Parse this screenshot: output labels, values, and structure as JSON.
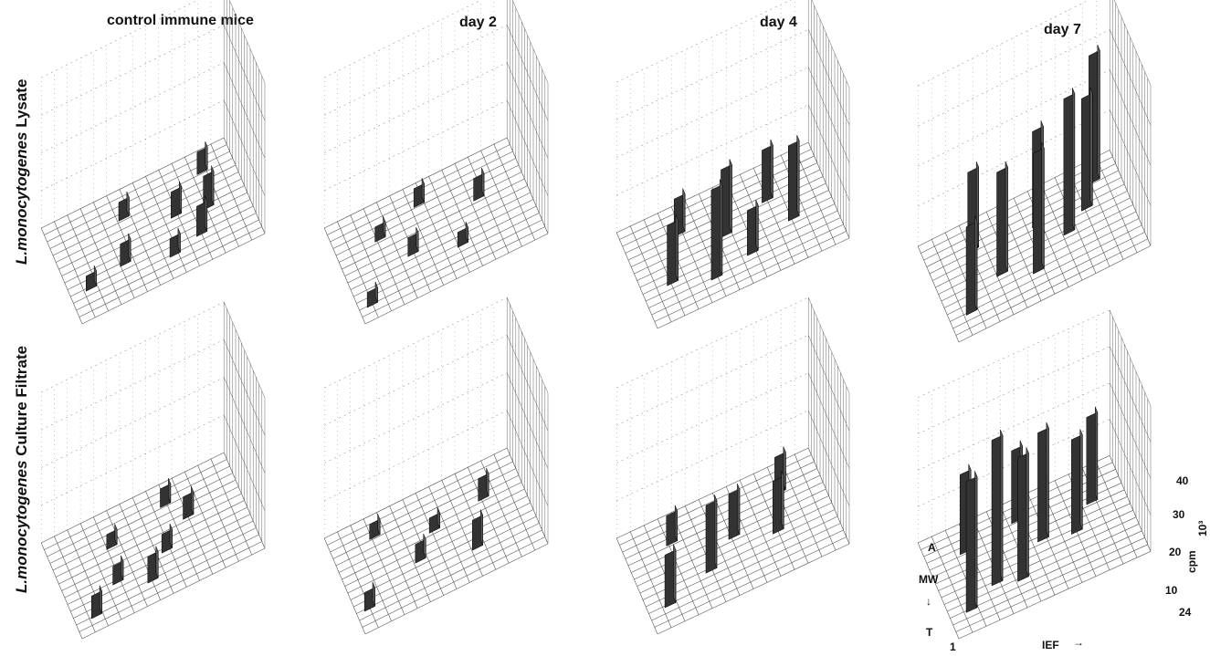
{
  "columns": [
    "control immune mice",
    "day 2",
    "day 4",
    "day 7"
  ],
  "rows": [
    {
      "italic": "L.monocytogenes",
      "rest": " Lysate"
    },
    {
      "italic": "L.monocytogenes",
      "rest": "  Culture Filtrate"
    }
  ],
  "axes": {
    "iefLabel": "IEF",
    "iefArrow": "→",
    "iefStart": "1",
    "iefEnd": "24",
    "mwLabel": "MW",
    "mwTop": "A",
    "mwArrow": "↓",
    "mwBottom": "T",
    "zLabel": "cpm",
    "zExp": "10³",
    "zTicks": [
      "10",
      "20",
      "30",
      "40"
    ]
  },
  "chart_data": [
    {
      "type": "bar3d",
      "row": "Lysate",
      "column": "control immune mice",
      "x_range": [
        1,
        24
      ],
      "z_range": [
        0,
        40
      ],
      "peaks": [
        [
          3,
          4,
          4
        ],
        [
          8,
          5,
          6
        ],
        [
          14,
          3,
          5
        ],
        [
          16,
          8,
          7
        ],
        [
          18,
          4,
          8
        ],
        [
          10,
          11,
          5
        ],
        [
          20,
          7,
          9
        ],
        [
          21,
          12,
          6
        ]
      ]
    },
    {
      "type": "bar3d",
      "row": "Lysate",
      "column": "day 2",
      "x_range": [
        1,
        24
      ],
      "z_range": [
        0,
        40
      ],
      "peaks": [
        [
          2,
          2,
          4
        ],
        [
          9,
          6,
          5
        ],
        [
          15,
          4,
          4
        ],
        [
          19,
          9,
          6
        ],
        [
          12,
          12,
          5
        ],
        [
          6,
          10,
          4
        ]
      ]
    },
    {
      "type": "bar3d",
      "row": "Lysate",
      "column": "day 4",
      "x_range": [
        1,
        24
      ],
      "z_range": [
        0,
        40
      ],
      "peaks": [
        [
          4,
          5,
          16
        ],
        [
          9,
          3,
          24
        ],
        [
          12,
          8,
          18
        ],
        [
          14,
          4,
          12
        ],
        [
          18,
          10,
          14
        ],
        [
          20,
          6,
          20
        ],
        [
          7,
          11,
          10
        ]
      ]
    },
    {
      "type": "bar3d",
      "row": "Lysate",
      "column": "day 7",
      "x_range": [
        1,
        24
      ],
      "z_range": [
        0,
        40
      ],
      "peaks": [
        [
          3,
          3,
          22
        ],
        [
          8,
          6,
          26
        ],
        [
          12,
          4,
          30
        ],
        [
          17,
          7,
          34
        ],
        [
          20,
          9,
          28
        ],
        [
          22,
          12,
          32
        ],
        [
          6,
          11,
          20
        ],
        [
          14,
          10,
          24
        ]
      ]
    },
    {
      "type": "bar3d",
      "row": "Culture Filtrate",
      "column": "control immune mice",
      "x_range": [
        1,
        24
      ],
      "z_range": [
        0,
        40
      ],
      "peaks": [
        [
          3,
          2,
          6
        ],
        [
          7,
          5,
          5
        ],
        [
          11,
          3,
          7
        ],
        [
          14,
          6,
          5
        ],
        [
          18,
          9,
          6
        ],
        [
          8,
          10,
          4
        ],
        [
          16,
          12,
          5
        ]
      ]
    },
    {
      "type": "bar3d",
      "row": "Culture Filtrate",
      "column": "day 2",
      "x_range": [
        1,
        24
      ],
      "z_range": [
        0,
        40
      ],
      "peaks": [
        [
          2,
          3,
          5
        ],
        [
          10,
          6,
          5
        ],
        [
          17,
          4,
          8
        ],
        [
          20,
          10,
          6
        ],
        [
          6,
          12,
          4
        ],
        [
          13,
          9,
          4
        ]
      ]
    },
    {
      "type": "bar3d",
      "row": "Culture Filtrate",
      "column": "day 4",
      "x_range": [
        1,
        24
      ],
      "z_range": [
        0,
        40
      ],
      "peaks": [
        [
          3,
          3,
          14
        ],
        [
          9,
          5,
          18
        ],
        [
          13,
          8,
          12
        ],
        [
          18,
          6,
          14
        ],
        [
          20,
          11,
          10
        ],
        [
          6,
          11,
          8
        ]
      ]
    },
    {
      "type": "bar3d",
      "row": "Culture Filtrate",
      "column": "day 7",
      "x_range": [
        1,
        24
      ],
      "z_range": [
        0,
        40
      ],
      "peaks": [
        [
          3,
          3,
          36
        ],
        [
          7,
          5,
          40
        ],
        [
          10,
          4,
          34
        ],
        [
          14,
          8,
          30
        ],
        [
          18,
          7,
          26
        ],
        [
          21,
          10,
          24
        ],
        [
          5,
          11,
          22
        ],
        [
          12,
          12,
          20
        ]
      ]
    }
  ]
}
